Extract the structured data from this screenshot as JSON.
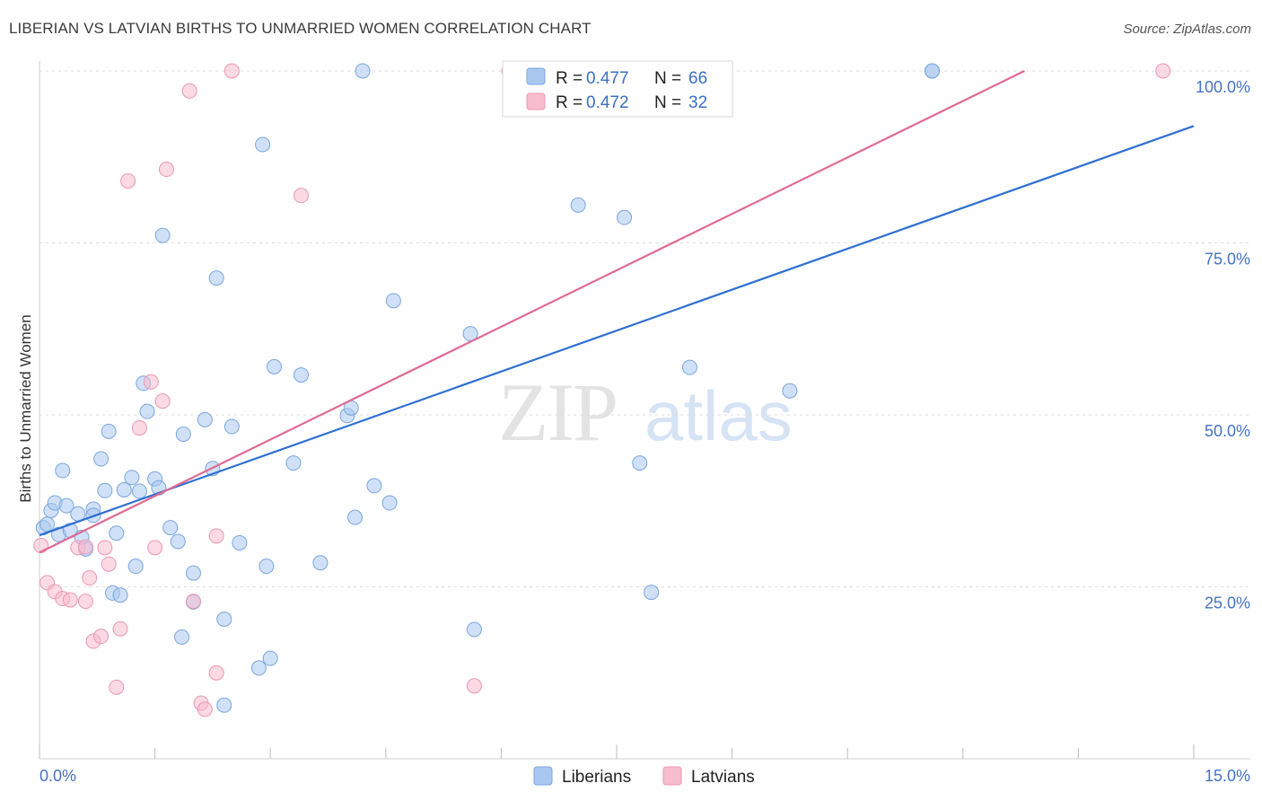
{
  "title": "LIBERIAN VS LATVIAN BIRTHS TO UNMARRIED WOMEN CORRELATION CHART",
  "source": "Source: ZipAtlas.com",
  "watermark": {
    "zip": "ZIP",
    "atlas": "atlas"
  },
  "colors": {
    "liberians_fill": "#a9c8f0",
    "liberians_stroke": "#7aa6de",
    "liberians_line": "#2e6fd1",
    "latvians_fill": "#f7bccd",
    "latvians_stroke": "#eb97b2",
    "latvians_line": "#e06a93"
  },
  "legend": {
    "r_label": "R =",
    "n_label": "N =",
    "liberians_r": "0.477",
    "liberians_n": "66",
    "latvians_r": "0.472",
    "latvians_n": "32"
  },
  "bottom_legend": {
    "liberians": "Liberians",
    "latvians": "Latvians"
  },
  "chart_data": {
    "type": "scatter",
    "title": "LIBERIAN VS LATVIAN BIRTHS TO UNMARRIED WOMEN CORRELATION CHART",
    "xlabel": "",
    "ylabel": "Births to Unmarried Women",
    "xlim": [
      0,
      15
    ],
    "ylim": [
      0,
      100
    ],
    "x_tick_labels": {
      "left": "0.0%",
      "right": "15.0%"
    },
    "y_ticks": [
      {
        "value": 25,
        "label": "25.0%"
      },
      {
        "value": 50,
        "label": "50.0%"
      },
      {
        "value": 75,
        "label": "75.0%"
      },
      {
        "value": 100,
        "label": "100.0%"
      }
    ],
    "series": [
      {
        "name": "Liberians",
        "trend": {
          "x": [
            0,
            15
          ],
          "y": [
            32.5,
            92
          ]
        },
        "points": [
          [
            0.05,
            33.6
          ],
          [
            0.1,
            34.1
          ],
          [
            0.15,
            36.1
          ],
          [
            0.2,
            37.2
          ],
          [
            0.25,
            32.6
          ],
          [
            0.3,
            41.9
          ],
          [
            0.35,
            36.8
          ],
          [
            0.4,
            33.2
          ],
          [
            0.5,
            35.6
          ],
          [
            0.55,
            32.2
          ],
          [
            0.6,
            30.5
          ],
          [
            0.7,
            36.3
          ],
          [
            0.7,
            35.4
          ],
          [
            0.8,
            43.6
          ],
          [
            0.85,
            39.0
          ],
          [
            0.9,
            47.6
          ],
          [
            0.95,
            24.1
          ],
          [
            1.0,
            32.8
          ],
          [
            1.05,
            23.8
          ],
          [
            1.1,
            39.1
          ],
          [
            1.2,
            40.9
          ],
          [
            1.25,
            28.0
          ],
          [
            1.3,
            38.9
          ],
          [
            1.35,
            54.6
          ],
          [
            1.4,
            50.5
          ],
          [
            1.5,
            40.7
          ],
          [
            1.55,
            39.4
          ],
          [
            1.6,
            76.1
          ],
          [
            1.7,
            33.6
          ],
          [
            1.8,
            31.6
          ],
          [
            1.85,
            17.7
          ],
          [
            1.87,
            47.2
          ],
          [
            2.0,
            27.0
          ],
          [
            2.0,
            22.8
          ],
          [
            2.15,
            49.3
          ],
          [
            2.25,
            42.2
          ],
          [
            2.3,
            69.9
          ],
          [
            2.4,
            20.3
          ],
          [
            2.4,
            7.8
          ],
          [
            2.5,
            48.3
          ],
          [
            2.6,
            31.4
          ],
          [
            2.85,
            13.2
          ],
          [
            2.9,
            89.3
          ],
          [
            2.95,
            28.0
          ],
          [
            3.0,
            14.6
          ],
          [
            3.05,
            57.0
          ],
          [
            3.3,
            43.0
          ],
          [
            3.4,
            55.8
          ],
          [
            3.65,
            28.5
          ],
          [
            4.0,
            49.9
          ],
          [
            4.05,
            51.0
          ],
          [
            4.1,
            35.1
          ],
          [
            4.2,
            100
          ],
          [
            4.35,
            39.7
          ],
          [
            4.55,
            37.2
          ],
          [
            4.6,
            66.6
          ],
          [
            5.6,
            61.8
          ],
          [
            5.65,
            18.8
          ],
          [
            7.0,
            80.5
          ],
          [
            7.6,
            78.7
          ],
          [
            7.8,
            43.0
          ],
          [
            7.95,
            24.2
          ],
          [
            8.45,
            56.9
          ],
          [
            9.75,
            53.5
          ],
          [
            11.6,
            100
          ],
          [
            11.6,
            100
          ]
        ]
      },
      {
        "name": "Latvians",
        "trend": {
          "x": [
            0,
            12.8
          ],
          "y": [
            30.0,
            100
          ]
        },
        "points": [
          [
            0.02,
            31.0
          ],
          [
            0.1,
            25.6
          ],
          [
            0.2,
            24.3
          ],
          [
            0.3,
            23.3
          ],
          [
            0.4,
            23.1
          ],
          [
            0.5,
            30.7
          ],
          [
            0.6,
            30.8
          ],
          [
            0.6,
            22.9
          ],
          [
            0.65,
            26.3
          ],
          [
            0.7,
            17.1
          ],
          [
            0.8,
            17.8
          ],
          [
            0.85,
            30.7
          ],
          [
            0.9,
            28.3
          ],
          [
            1.0,
            10.4
          ],
          [
            1.05,
            18.9
          ],
          [
            1.15,
            84.0
          ],
          [
            1.3,
            48.1
          ],
          [
            1.45,
            54.8
          ],
          [
            1.5,
            30.7
          ],
          [
            1.6,
            52.0
          ],
          [
            1.65,
            85.7
          ],
          [
            1.95,
            97.1
          ],
          [
            2.0,
            22.9
          ],
          [
            2.1,
            8.1
          ],
          [
            2.15,
            7.2
          ],
          [
            2.3,
            12.5
          ],
          [
            2.3,
            32.4
          ],
          [
            2.5,
            100
          ],
          [
            3.4,
            81.9
          ],
          [
            5.65,
            10.6
          ],
          [
            6.1,
            100
          ],
          [
            14.6,
            100
          ]
        ]
      }
    ]
  }
}
